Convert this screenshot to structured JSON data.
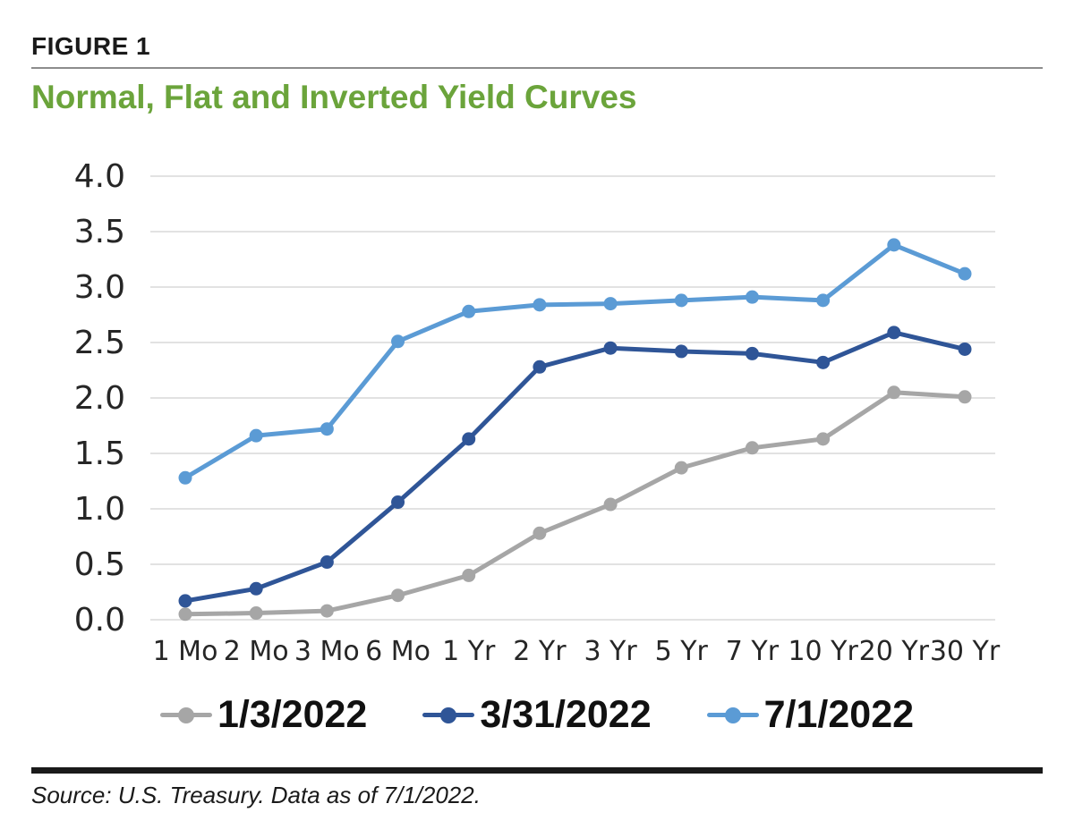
{
  "figure": {
    "label": "FIGURE 1",
    "title": "Normal, Flat and Inverted Yield Curves"
  },
  "source": {
    "text": "Source: U.S. Treasury. Data as of 7/1/2022."
  },
  "colors": {
    "title_green": "#6ba43b",
    "gridline": "#d9d9d9",
    "axis_text": "#262626",
    "legend_text": "#111111",
    "rule_gray": "#8c8c8c",
    "bottom_bar_black": "#1a1a1a"
  },
  "chart_data": {
    "type": "line",
    "title": "Normal, Flat and Inverted Yield Curves",
    "categories": [
      "1 Mo",
      "2 Mo",
      "3 Mo",
      "6 Mo",
      "1 Yr",
      "2 Yr",
      "3 Yr",
      "5 Yr",
      "7 Yr",
      "10 Yr",
      "20 Yr",
      "30 Yr"
    ],
    "series": [
      {
        "name": "1/3/2022",
        "color": "#a6a6a6",
        "values": [
          0.05,
          0.06,
          0.08,
          0.22,
          0.4,
          0.78,
          1.04,
          1.37,
          1.55,
          1.63,
          2.05,
          2.01
        ]
      },
      {
        "name": "3/31/2022",
        "color": "#2f5597",
        "values": [
          0.17,
          0.28,
          0.52,
          1.06,
          1.63,
          2.28,
          2.45,
          2.42,
          2.4,
          2.32,
          2.59,
          2.44
        ]
      },
      {
        "name": "7/1/2022",
        "color": "#5b9bd5",
        "values": [
          1.28,
          1.66,
          1.72,
          2.51,
          2.78,
          2.84,
          2.85,
          2.88,
          2.91,
          2.88,
          3.38,
          3.12
        ]
      }
    ],
    "yticks": [
      "0.0",
      "0.5",
      "1.0",
      "1.5",
      "2.0",
      "2.5",
      "3.0",
      "3.5",
      "4.0"
    ],
    "ylim": [
      0.0,
      4.0
    ],
    "xlabel": "",
    "ylabel": "",
    "grid": "horizontal",
    "legend_position": "bottom"
  }
}
